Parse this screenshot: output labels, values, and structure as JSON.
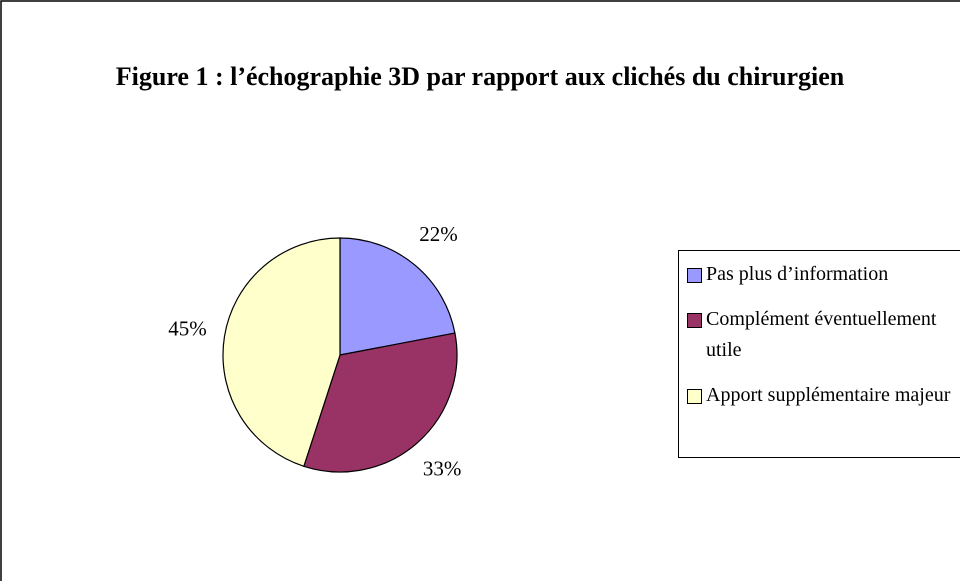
{
  "chart_data": {
    "type": "pie",
    "title": "Figure 1 : l’échographie 3D par rapport aux clichés du chirurgien",
    "categories": [
      "Pas plus d’information",
      "Complément éventuellement utile",
      "Apport supplémentaire majeur"
    ],
    "values": [
      22,
      33,
      45
    ],
    "value_labels": [
      "22%",
      "33%",
      "45%"
    ],
    "colors": [
      "#9999ff",
      "#993366",
      "#ffffcc"
    ],
    "legend": "right"
  }
}
